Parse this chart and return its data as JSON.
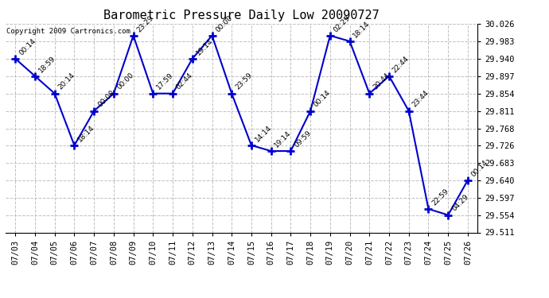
{
  "title": "Barometric Pressure Daily Low 20090727",
  "copyright": "Copyright 2009 Cartronics.com",
  "background_color": "#ffffff",
  "line_color": "#0000cc",
  "marker_color": "#0000cc",
  "text_color": "#000000",
  "dates": [
    "07/03",
    "07/04",
    "07/05",
    "07/06",
    "07/07",
    "07/08",
    "07/09",
    "07/10",
    "07/11",
    "07/12",
    "07/13",
    "07/14",
    "07/15",
    "07/16",
    "07/17",
    "07/18",
    "07/19",
    "07/20",
    "07/21",
    "07/22",
    "07/23",
    "07/24",
    "07/25",
    "07/26"
  ],
  "values": [
    29.94,
    29.897,
    29.854,
    29.726,
    29.811,
    29.854,
    29.997,
    29.854,
    29.854,
    29.94,
    29.997,
    29.854,
    29.726,
    29.712,
    29.712,
    29.811,
    29.997,
    29.983,
    29.854,
    29.897,
    29.811,
    29.569,
    29.554,
    29.64
  ],
  "annotations": [
    "00:14",
    "18:59",
    "20:14",
    "18:14",
    "00:00",
    "00:00",
    "23:29",
    "17:59",
    "02:44",
    "19:14",
    "00:00",
    "23:59",
    "14:14",
    "19:14",
    "09:59",
    "00:14",
    "02:29",
    "18:14",
    "20:44",
    "22:44",
    "23:44",
    "22:59",
    "04:29",
    "00:14"
  ],
  "ylim": [
    29.511,
    30.026
  ],
  "yticks": [
    29.511,
    29.554,
    29.597,
    29.64,
    29.683,
    29.726,
    29.768,
    29.811,
    29.854,
    29.897,
    29.94,
    29.983,
    30.026
  ],
  "title_fontsize": 11,
  "tick_fontsize": 7.5,
  "annot_fontsize": 6.5,
  "grid_color": "#c0c0c0",
  "grid_linestyle": "--"
}
